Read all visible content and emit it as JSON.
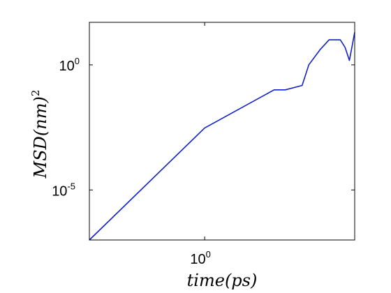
{
  "chart_data": {
    "type": "line",
    "title": "",
    "xlabel": {
      "base": "time(ps)"
    },
    "ylabel": {
      "base": "MSD(nm)",
      "sup": "2"
    },
    "xscale": "log",
    "yscale": "log",
    "xlim": [
      0.1,
      20
    ],
    "ylim": [
      1e-07,
      50
    ],
    "grid": false,
    "xticks": [
      {
        "value": 1,
        "base": "10",
        "exp": "0"
      }
    ],
    "yticks": [
      {
        "value": 1,
        "base": "10",
        "exp": "0"
      },
      {
        "value": 1e-05,
        "base": "10",
        "exp": "-5"
      }
    ],
    "series": [
      {
        "color": "#1020c8",
        "x": [
          0.1,
          1,
          4,
          5,
          7,
          8,
          10,
          12,
          15,
          16.5,
          18,
          20
        ],
        "y": [
          1e-07,
          0.003,
          0.1,
          0.1,
          0.15,
          1,
          4,
          10,
          10,
          5,
          1.5,
          20
        ]
      }
    ]
  }
}
